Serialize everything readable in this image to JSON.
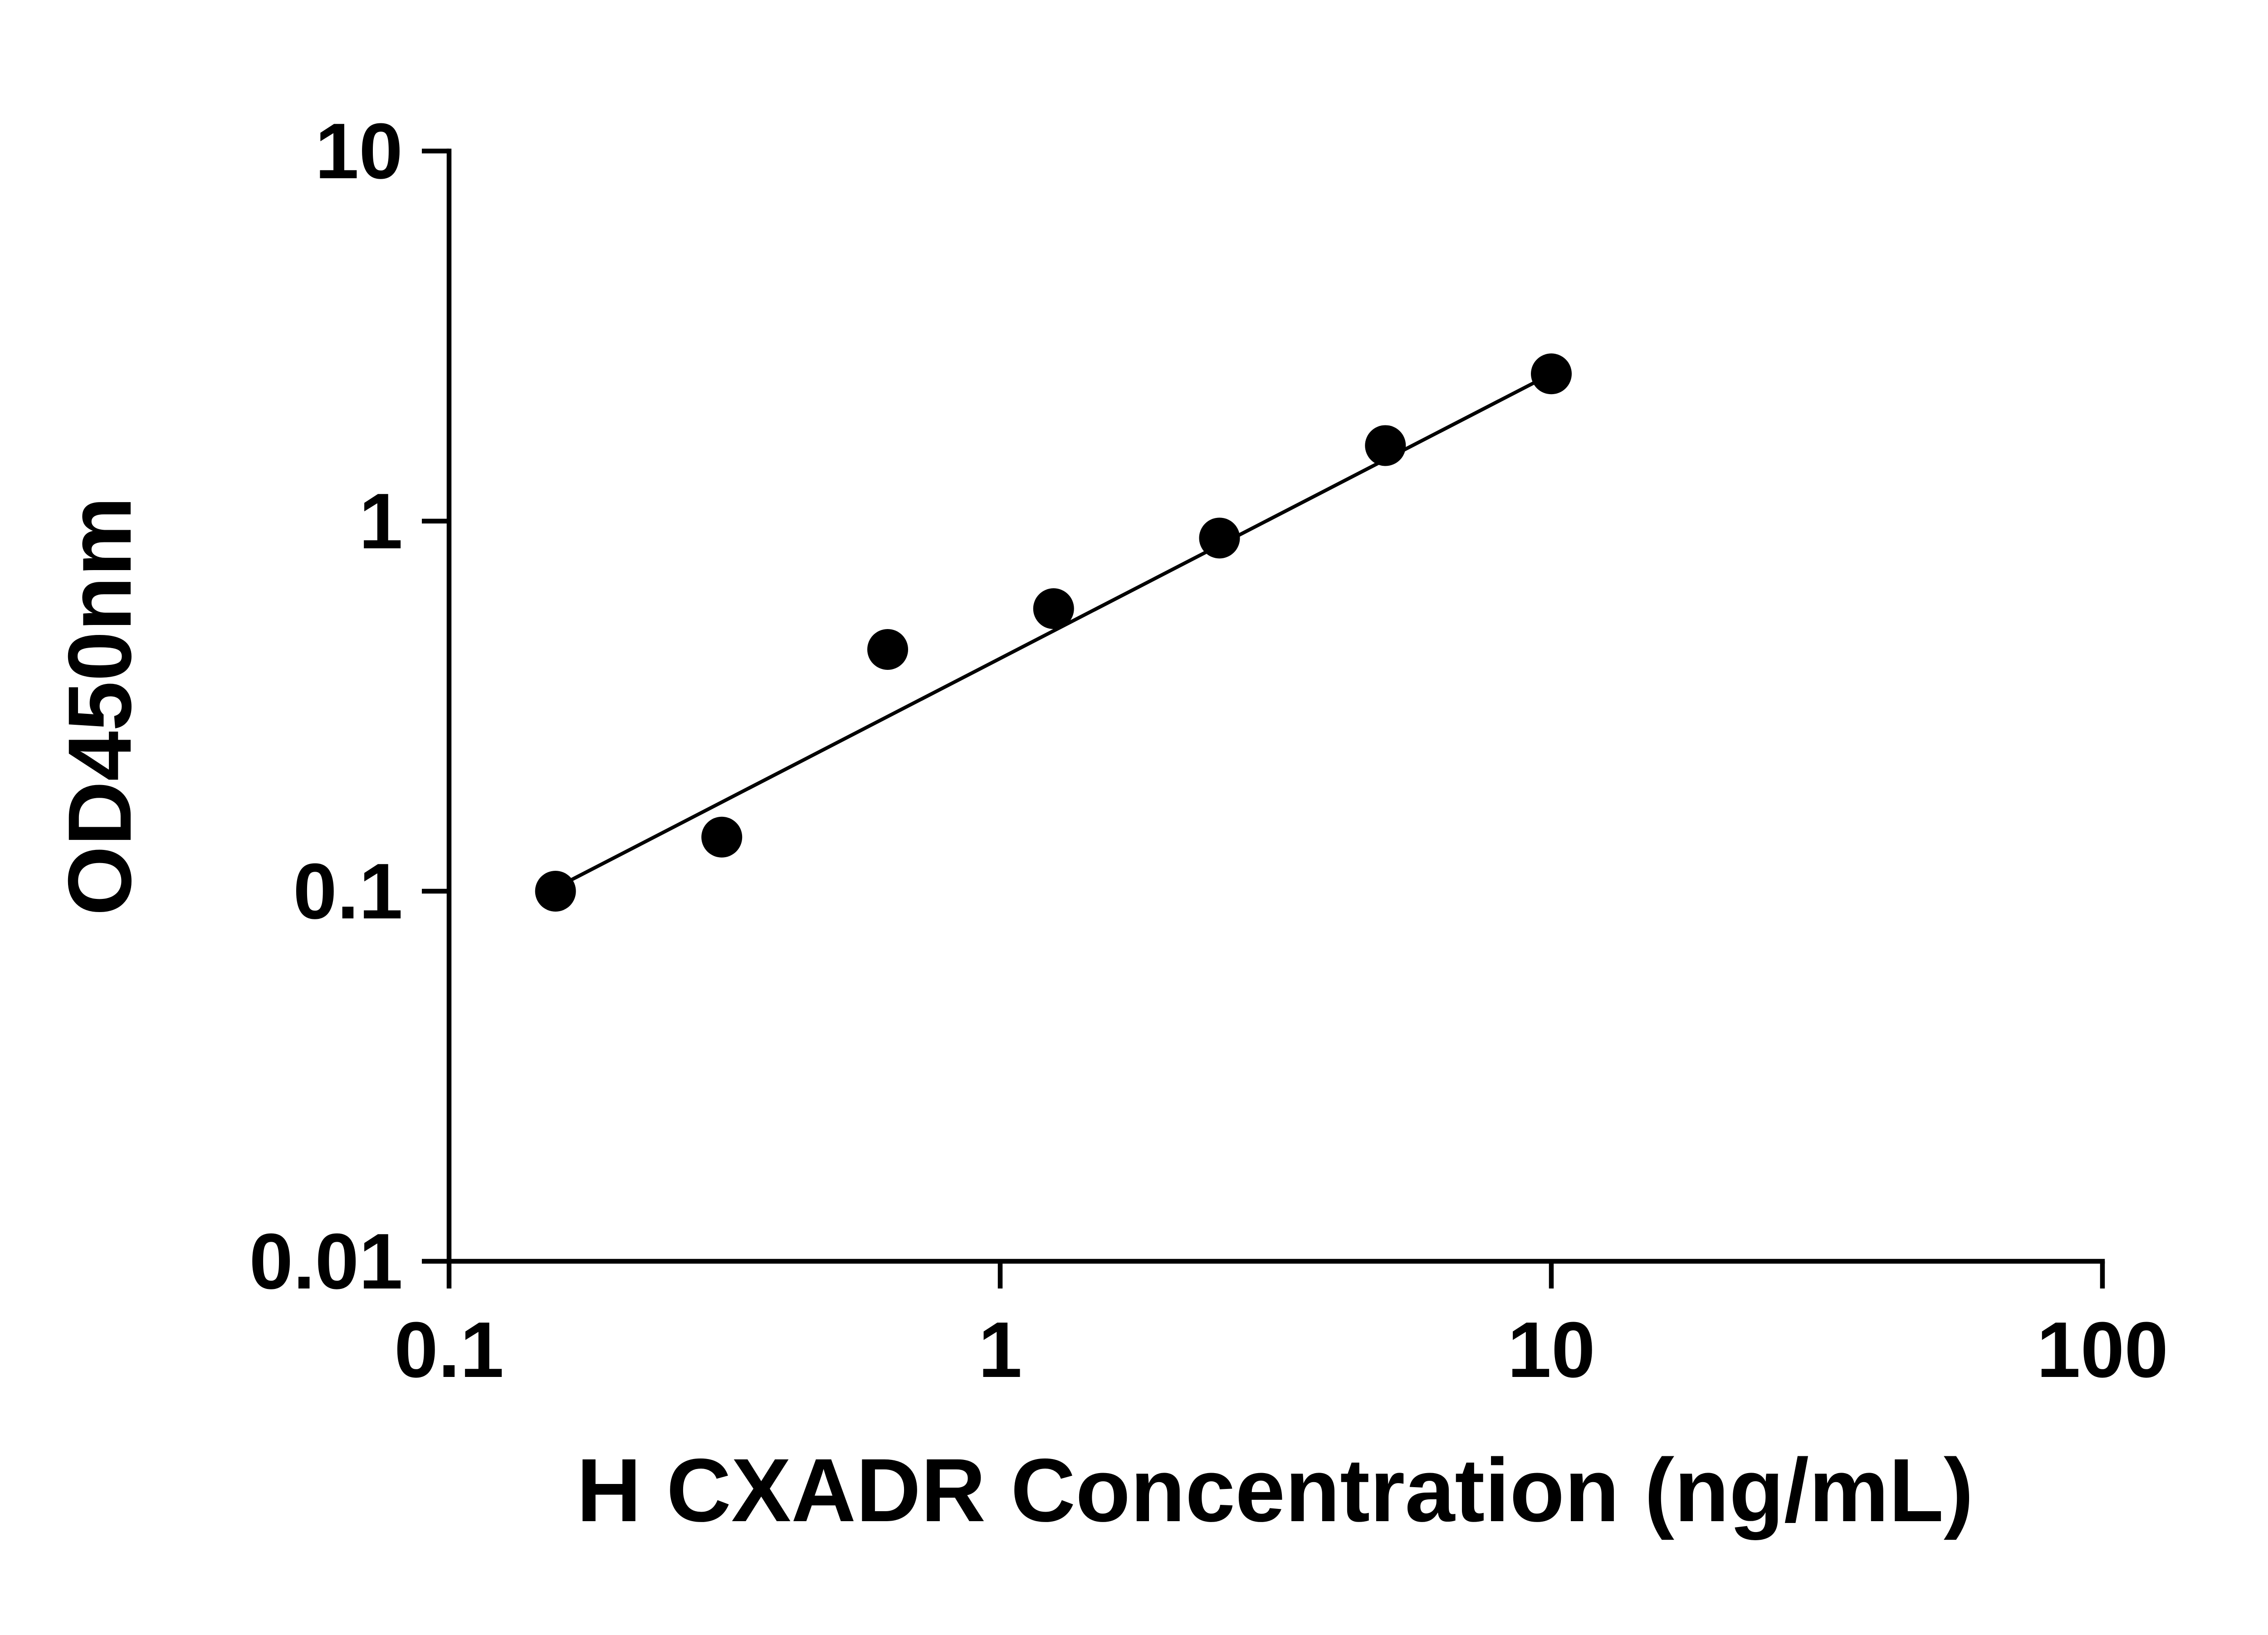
{
  "figure": {
    "background_color": "#ffffff"
  },
  "chart_data": {
    "type": "scatter",
    "title": "",
    "xlabel": "H CXADR Concentration (ng/mL)",
    "ylabel": "OD450nm",
    "x_scale": "log10",
    "y_scale": "log10",
    "xlim": [
      0.1,
      100
    ],
    "ylim": [
      0.01,
      10
    ],
    "x_ticks": [
      0.1,
      1,
      10,
      100
    ],
    "x_tick_labels": [
      "0.1",
      "1",
      "10",
      "100"
    ],
    "y_ticks": [
      0.01,
      0.1,
      1,
      10
    ],
    "y_tick_labels": [
      "0.01",
      "0.1",
      "1",
      "10"
    ],
    "grid": false,
    "legend": "none",
    "axis_color": "#000000",
    "series": [
      {
        "marker": "circle",
        "marker_color": "#000000",
        "line_color": "#000000",
        "x": [
          0.156,
          0.3125,
          0.625,
          1.25,
          2.5,
          5,
          10
        ],
        "y": [
          0.1,
          0.14,
          0.45,
          0.58,
          0.9,
          1.6,
          2.5
        ]
      }
    ],
    "fit_line": {
      "x1": 0.156,
      "y1": 0.102,
      "x2": 10,
      "y2": 2.5
    }
  }
}
